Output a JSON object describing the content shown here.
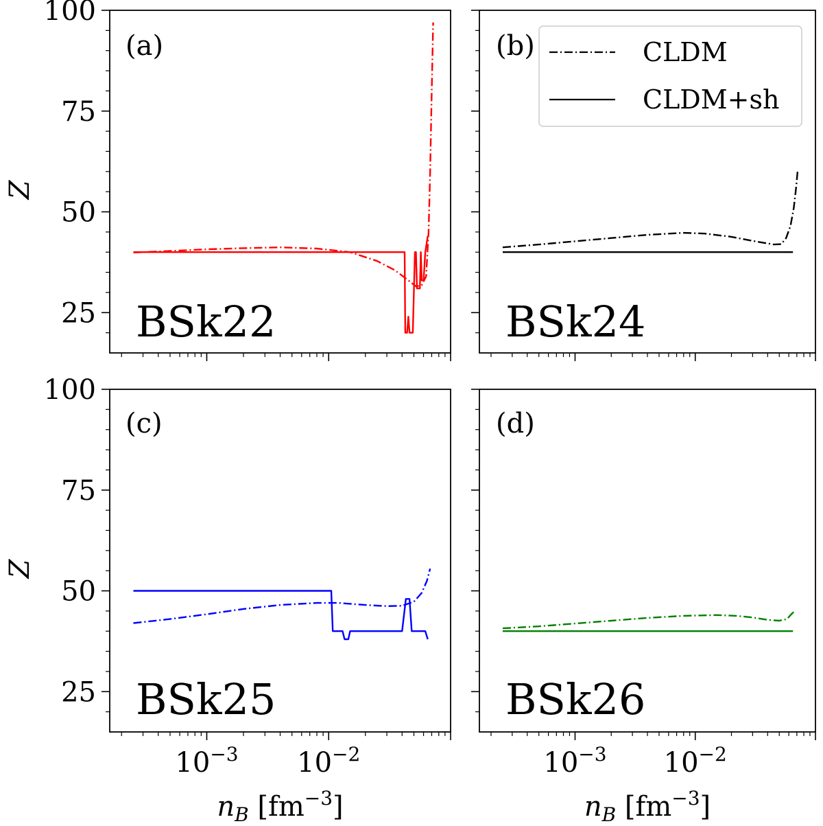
{
  "chart_data": [
    {
      "id": "a",
      "type": "line",
      "tag": "(a)",
      "model": "BSk22",
      "color": "#ff0000",
      "xlabel": "",
      "ylabel": "Z",
      "xscale": "log",
      "xlim": [
        0.00016,
        0.1
      ],
      "ylim": [
        15,
        100
      ],
      "series": [
        {
          "name": "CLDM",
          "style": "dashdot",
          "x": [
            0.00025,
            0.0005,
            0.001,
            0.002,
            0.004,
            0.008,
            0.015,
            0.025,
            0.035,
            0.045,
            0.052,
            0.058,
            0.063,
            0.066,
            0.068,
            0.07,
            0.072
          ],
          "y": [
            39.9,
            40.3,
            40.7,
            41.0,
            41.2,
            40.9,
            40.0,
            37.8,
            35.5,
            33.0,
            31.5,
            31.8,
            34.0,
            45.0,
            60.0,
            80.0,
            97.0
          ]
        },
        {
          "name": "CLDM+sh",
          "style": "solid",
          "x": [
            0.00025,
            0.01,
            0.02,
            0.03,
            0.04,
            0.042,
            0.0425,
            0.044,
            0.045,
            0.046,
            0.049,
            0.051,
            0.052,
            0.053,
            0.056,
            0.057,
            0.058,
            0.06,
            0.062,
            0.065
          ],
          "y": [
            40,
            40,
            40,
            40,
            40,
            40,
            20,
            20,
            24,
            20,
            20,
            40,
            40,
            31,
            31,
            40,
            33,
            33,
            40,
            44
          ]
        }
      ]
    },
    {
      "id": "b",
      "type": "line",
      "tag": "(b)",
      "model": "BSk24",
      "color": "#000000",
      "xlabel": "",
      "ylabel": "",
      "xscale": "log",
      "xlim": [
        0.00016,
        0.1
      ],
      "ylim": [
        15,
        100
      ],
      "series": [
        {
          "name": "CLDM",
          "style": "dashdot",
          "x": [
            0.00025,
            0.0005,
            0.001,
            0.002,
            0.004,
            0.008,
            0.012,
            0.02,
            0.03,
            0.045,
            0.052,
            0.057,
            0.062,
            0.066,
            0.069,
            0.071
          ],
          "y": [
            41.2,
            41.9,
            42.7,
            43.5,
            44.3,
            44.8,
            44.6,
            43.8,
            42.8,
            41.9,
            42.0,
            43.5,
            46.5,
            51.0,
            56.0,
            60.0
          ]
        },
        {
          "name": "CLDM+sh",
          "style": "solid",
          "x": [
            0.00025,
            0.065
          ],
          "y": [
            40,
            40
          ]
        }
      ]
    },
    {
      "id": "c",
      "type": "line",
      "tag": "(c)",
      "model": "BSk25",
      "color": "#0000ff",
      "xlabel": "n_B [fm^-3]",
      "ylabel": "Z",
      "xscale": "log",
      "xlim": [
        0.00016,
        0.1
      ],
      "ylim": [
        15,
        100
      ],
      "series": [
        {
          "name": "CLDM",
          "style": "dashdot",
          "x": [
            0.00025,
            0.0005,
            0.001,
            0.002,
            0.004,
            0.008,
            0.012,
            0.02,
            0.03,
            0.04,
            0.05,
            0.058,
            0.064,
            0.068
          ],
          "y": [
            42.0,
            43.0,
            44.2,
            45.5,
            46.5,
            47.0,
            47.0,
            46.5,
            46.2,
            46.3,
            47.3,
            49.5,
            52.5,
            55.5
          ]
        },
        {
          "name": "CLDM+sh",
          "style": "solid",
          "x": [
            0.00025,
            0.0105,
            0.0108,
            0.013,
            0.0135,
            0.0145,
            0.015,
            0.04,
            0.043,
            0.046,
            0.048,
            0.062,
            0.065
          ],
          "y": [
            50,
            50,
            40,
            40,
            38,
            38,
            40,
            40,
            48,
            48,
            40,
            40,
            38
          ]
        }
      ]
    },
    {
      "id": "d",
      "type": "line",
      "tag": "(d)",
      "model": "BSk26",
      "color": "#008000",
      "xlabel": "n_B [fm^-3]",
      "ylabel": "",
      "xscale": "log",
      "xlim": [
        0.00016,
        0.1
      ],
      "ylim": [
        15,
        100
      ],
      "series": [
        {
          "name": "CLDM",
          "style": "dashdot",
          "x": [
            0.00025,
            0.0005,
            0.001,
            0.002,
            0.004,
            0.008,
            0.015,
            0.022,
            0.03,
            0.04,
            0.05,
            0.058,
            0.063,
            0.066
          ],
          "y": [
            40.7,
            41.2,
            41.9,
            42.6,
            43.3,
            43.8,
            44.0,
            43.8,
            43.4,
            42.8,
            42.6,
            43.0,
            44.2,
            44.8
          ]
        },
        {
          "name": "CLDM+sh",
          "style": "solid",
          "x": [
            0.00025,
            0.065
          ],
          "y": [
            40,
            40
          ]
        }
      ]
    }
  ],
  "legend": {
    "entries": [
      "CLDM",
      "CLDM+sh"
    ],
    "placement": "top-right of panel (b)"
  }
}
